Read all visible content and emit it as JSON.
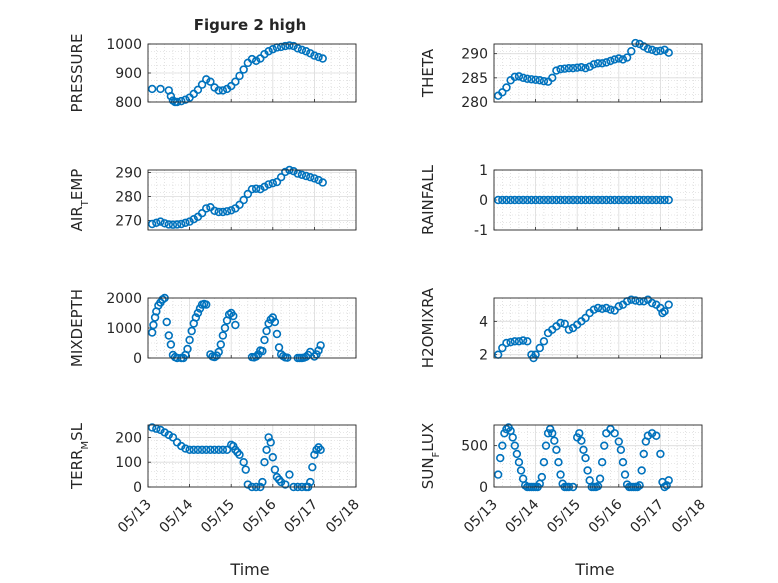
{
  "figure": {
    "title": "Figure 2 high",
    "x_axis_label": "Time"
  },
  "colors": {
    "marker": "#0072bd",
    "axis": "#262626",
    "grid": "#dcdcdc",
    "minor_grid": "#cfcfcf"
  },
  "chart_data": [
    {
      "type": "scatter",
      "ylabel": "PRESSURE",
      "ylim": [
        800,
        1000
      ],
      "yticks": [
        "800",
        "900",
        "1000"
      ],
      "xlim": [
        "05/13",
        "05/18"
      ],
      "x_unit": "days from 05/13",
      "grid": true,
      "x": [
        0.1,
        0.3,
        0.5,
        0.55,
        0.6,
        0.65,
        0.7,
        0.8,
        0.9,
        1.0,
        1.1,
        1.2,
        1.3,
        1.4,
        1.5,
        1.6,
        1.7,
        1.8,
        1.9,
        2.0,
        2.1,
        2.2,
        2.3,
        2.4,
        2.5,
        2.6,
        2.7,
        2.8,
        2.9,
        3.0,
        3.1,
        3.2,
        3.3,
        3.4,
        3.5,
        3.6,
        3.7,
        3.8,
        3.9,
        4.0,
        4.1,
        4.2
      ],
      "values": [
        845,
        845,
        840,
        820,
        805,
        800,
        800,
        803,
        808,
        815,
        828,
        842,
        860,
        878,
        870,
        850,
        840,
        840,
        845,
        855,
        870,
        890,
        912,
        935,
        948,
        942,
        950,
        965,
        975,
        982,
        988,
        990,
        993,
        995,
        993,
        985,
        980,
        975,
        968,
        960,
        955,
        950
      ]
    },
    {
      "type": "scatter",
      "ylabel": "THETA",
      "ylim": [
        280,
        292
      ],
      "yticks": [
        "280",
        "285",
        "290"
      ],
      "xlim": [
        "05/13",
        "05/18"
      ],
      "x_unit": "days from 05/13",
      "grid": true,
      "x": [
        0.1,
        0.2,
        0.3,
        0.4,
        0.5,
        0.6,
        0.7,
        0.8,
        0.9,
        1.0,
        1.1,
        1.2,
        1.3,
        1.4,
        1.5,
        1.6,
        1.7,
        1.8,
        1.9,
        2.0,
        2.1,
        2.2,
        2.3,
        2.4,
        2.5,
        2.6,
        2.7,
        2.8,
        2.9,
        3.0,
        3.1,
        3.2,
        3.3,
        3.4,
        3.5,
        3.6,
        3.7,
        3.8,
        3.9,
        4.0,
        4.1,
        4.2
      ],
      "values": [
        281.3,
        282,
        283,
        284.5,
        285.2,
        285.3,
        285,
        284.8,
        284.7,
        284.6,
        284.5,
        284.3,
        284.2,
        285,
        286.5,
        286.8,
        286.9,
        287,
        287,
        287.1,
        287.2,
        287,
        287.3,
        287.8,
        288,
        288,
        288.2,
        288.5,
        288.8,
        289,
        288.8,
        289.2,
        290.5,
        292.2,
        292,
        291.5,
        291,
        290.8,
        290.5,
        290.6,
        290.8,
        290.2
      ]
    },
    {
      "type": "scatter",
      "ylabel": "AIR_TEMP",
      "ylim": [
        266,
        291
      ],
      "yticks": [
        "270",
        "280",
        "290"
      ],
      "xlim": [
        "05/13",
        "05/18"
      ],
      "x_unit": "days from 05/13",
      "grid": true,
      "x": [
        0.1,
        0.2,
        0.3,
        0.4,
        0.5,
        0.6,
        0.7,
        0.8,
        0.9,
        1.0,
        1.1,
        1.2,
        1.3,
        1.4,
        1.5,
        1.6,
        1.7,
        1.8,
        1.9,
        2.0,
        2.1,
        2.2,
        2.3,
        2.4,
        2.5,
        2.6,
        2.7,
        2.8,
        2.9,
        3.0,
        3.1,
        3.2,
        3.3,
        3.4,
        3.5,
        3.6,
        3.7,
        3.8,
        3.9,
        4.0,
        4.1,
        4.2
      ],
      "values": [
        268.5,
        269,
        269.5,
        268.8,
        268.3,
        268.2,
        268.3,
        268.5,
        269,
        269.5,
        270.5,
        271.5,
        273,
        275,
        275.5,
        274,
        273.5,
        273.5,
        273.8,
        274.2,
        275,
        276.5,
        278.5,
        281,
        283,
        283.2,
        283,
        284,
        285,
        285.5,
        286,
        288,
        290.2,
        291,
        290.5,
        289.5,
        289,
        288.5,
        288,
        287.5,
        286.8,
        285.8
      ]
    },
    {
      "type": "scatter",
      "ylabel": "RAINFALL",
      "ylim": [
        -1,
        1
      ],
      "yticks": [
        "-1",
        "0",
        "1"
      ],
      "xlim": [
        "05/13",
        "05/18"
      ],
      "x_unit": "days from 05/13",
      "grid": true,
      "x": [
        0.1,
        0.2,
        0.3,
        0.4,
        0.5,
        0.6,
        0.7,
        0.8,
        0.9,
        1.0,
        1.1,
        1.2,
        1.3,
        1.4,
        1.5,
        1.6,
        1.7,
        1.8,
        1.9,
        2.0,
        2.1,
        2.2,
        2.3,
        2.4,
        2.5,
        2.6,
        2.7,
        2.8,
        2.9,
        3.0,
        3.1,
        3.2,
        3.3,
        3.4,
        3.5,
        3.6,
        3.7,
        3.8,
        3.9,
        4.0,
        4.1,
        4.2
      ],
      "values": [
        0,
        0,
        0,
        0,
        0,
        0,
        0,
        0,
        0,
        0,
        0,
        0,
        0,
        0,
        0,
        0,
        0,
        0,
        0,
        0,
        0,
        0,
        0,
        0,
        0,
        0,
        0,
        0,
        0,
        0,
        0,
        0,
        0,
        0,
        0,
        0,
        0,
        0,
        0,
        0,
        0,
        0
      ]
    },
    {
      "type": "scatter",
      "ylabel": "MIXDEPTH",
      "ylim": [
        0,
        2000
      ],
      "yticks": [
        "0",
        "1000",
        "2000"
      ],
      "xlim": [
        "05/13",
        "05/18"
      ],
      "x_unit": "days from 05/13",
      "grid": true,
      "x": [
        0.1,
        0.13,
        0.17,
        0.2,
        0.25,
        0.3,
        0.35,
        0.4,
        0.45,
        0.5,
        0.55,
        0.6,
        0.65,
        0.7,
        0.8,
        0.85,
        0.9,
        0.95,
        1.0,
        1.05,
        1.1,
        1.15,
        1.2,
        1.25,
        1.3,
        1.35,
        1.4,
        1.5,
        1.55,
        1.6,
        1.65,
        1.7,
        1.75,
        1.8,
        1.85,
        1.9,
        1.95,
        2.0,
        2.05,
        2.1,
        2.5,
        2.55,
        2.6,
        2.65,
        2.7,
        2.75,
        2.8,
        2.85,
        2.9,
        2.95,
        3.0,
        3.05,
        3.1,
        3.15,
        3.2,
        3.25,
        3.3,
        3.35,
        3.6,
        3.65,
        3.7,
        3.75,
        3.8,
        3.85,
        3.9,
        4.0,
        4.05,
        4.1,
        4.15
      ],
      "values": [
        850,
        1100,
        1350,
        1550,
        1750,
        1850,
        1950,
        2000,
        1200,
        750,
        450,
        100,
        30,
        0,
        0,
        0,
        100,
        300,
        600,
        900,
        1150,
        1350,
        1500,
        1650,
        1780,
        1800,
        1780,
        120,
        50,
        30,
        80,
        200,
        450,
        750,
        1000,
        1250,
        1450,
        1500,
        1400,
        1100,
        30,
        20,
        50,
        120,
        250,
        230,
        600,
        900,
        1150,
        1280,
        1350,
        1200,
        800,
        350,
        120,
        60,
        20,
        10,
        0,
        0,
        0,
        10,
        40,
        100,
        200,
        50,
        120,
        250,
        420
      ]
    },
    {
      "type": "scatter",
      "ylabel": "H2OMIXRA",
      "ylim": [
        1.8,
        5.4
      ],
      "yticks": [
        "2",
        "4"
      ],
      "xlim": [
        "05/13",
        "05/18"
      ],
      "x_unit": "days from 05/13",
      "grid": true,
      "x": [
        0.1,
        0.2,
        0.3,
        0.4,
        0.5,
        0.6,
        0.7,
        0.8,
        0.9,
        0.95,
        1.0,
        1.1,
        1.2,
        1.3,
        1.4,
        1.5,
        1.6,
        1.7,
        1.8,
        1.9,
        2.0,
        2.1,
        2.2,
        2.3,
        2.4,
        2.5,
        2.6,
        2.7,
        2.8,
        2.9,
        3.0,
        3.1,
        3.2,
        3.3,
        3.4,
        3.5,
        3.6,
        3.7,
        3.8,
        3.9,
        4.0,
        4.05,
        4.1,
        4.2
      ],
      "values": [
        2.0,
        2.4,
        2.7,
        2.75,
        2.8,
        2.8,
        2.85,
        2.8,
        2.0,
        1.8,
        2.0,
        2.4,
        2.8,
        3.3,
        3.5,
        3.7,
        3.9,
        3.85,
        3.5,
        3.6,
        3.8,
        4.0,
        4.2,
        4.5,
        4.7,
        4.8,
        4.75,
        4.8,
        4.7,
        4.65,
        4.9,
        5.0,
        5.2,
        5.3,
        5.25,
        5.2,
        5.2,
        5.3,
        5.1,
        5.0,
        4.8,
        4.5,
        4.6,
        5.0
      ]
    },
    {
      "type": "scatter",
      "ylabel": "TERR_MSL",
      "ylim": [
        0,
        250
      ],
      "yticks": [
        "0",
        "100",
        "200"
      ],
      "xlim": [
        "05/13",
        "05/18"
      ],
      "x_unit": "days from 05/13",
      "grid": true,
      "x": [
        0.1,
        0.2,
        0.3,
        0.4,
        0.5,
        0.6,
        0.7,
        0.8,
        0.9,
        1.0,
        1.1,
        1.2,
        1.3,
        1.4,
        1.5,
        1.6,
        1.7,
        1.8,
        1.9,
        2.0,
        2.05,
        2.1,
        2.15,
        2.2,
        2.3,
        2.35,
        2.4,
        2.5,
        2.6,
        2.7,
        2.75,
        2.8,
        2.85,
        2.9,
        2.95,
        3.0,
        3.05,
        3.1,
        3.15,
        3.2,
        3.3,
        3.4,
        3.5,
        3.6,
        3.7,
        3.8,
        3.85,
        3.9,
        3.95,
        4.0,
        4.05,
        4.1,
        4.15
      ],
      "values": [
        240,
        235,
        230,
        220,
        210,
        200,
        180,
        165,
        155,
        150,
        150,
        150,
        150,
        150,
        150,
        150,
        150,
        150,
        150,
        170,
        165,
        150,
        140,
        130,
        100,
        70,
        10,
        0,
        0,
        0,
        20,
        100,
        150,
        200,
        180,
        120,
        70,
        40,
        30,
        20,
        10,
        50,
        0,
        0,
        0,
        0,
        0,
        20,
        80,
        130,
        150,
        160,
        150
      ]
    },
    {
      "type": "scatter",
      "ylabel": "SUN_FLUX",
      "ylim": [
        0,
        750
      ],
      "yticks": [
        "0",
        "500"
      ],
      "xlim": [
        "05/13",
        "05/18"
      ],
      "x_unit": "days from 05/13",
      "grid": true,
      "x": [
        0.1,
        0.15,
        0.2,
        0.25,
        0.3,
        0.35,
        0.4,
        0.45,
        0.5,
        0.55,
        0.6,
        0.65,
        0.7,
        0.75,
        0.8,
        0.85,
        0.9,
        0.95,
        1.0,
        1.05,
        1.1,
        1.15,
        1.2,
        1.25,
        1.3,
        1.35,
        1.4,
        1.45,
        1.5,
        1.55,
        1.6,
        1.65,
        1.7,
        1.75,
        1.8,
        1.9,
        2.0,
        2.05,
        2.1,
        2.15,
        2.2,
        2.25,
        2.3,
        2.35,
        2.4,
        2.45,
        2.5,
        2.55,
        2.6,
        2.65,
        2.7,
        2.8,
        2.9,
        3.0,
        3.05,
        3.1,
        3.15,
        3.2,
        3.25,
        3.3,
        3.35,
        3.4,
        3.45,
        3.5,
        3.55,
        3.6,
        3.65,
        3.7,
        3.8,
        3.9,
        4.0,
        4.05,
        4.1,
        4.15,
        4.2
      ],
      "values": [
        150,
        350,
        500,
        650,
        700,
        720,
        680,
        600,
        500,
        400,
        300,
        200,
        100,
        20,
        0,
        0,
        0,
        0,
        0,
        0,
        40,
        120,
        300,
        500,
        650,
        700,
        650,
        560,
        450,
        300,
        150,
        40,
        0,
        0,
        0,
        0,
        600,
        650,
        560,
        450,
        350,
        200,
        80,
        0,
        0,
        0,
        10,
        100,
        300,
        500,
        650,
        700,
        650,
        550,
        450,
        300,
        150,
        30,
        0,
        0,
        0,
        0,
        0,
        20,
        200,
        400,
        550,
        620,
        650,
        620,
        400,
        60,
        0,
        20,
        80
      ]
    }
  ]
}
